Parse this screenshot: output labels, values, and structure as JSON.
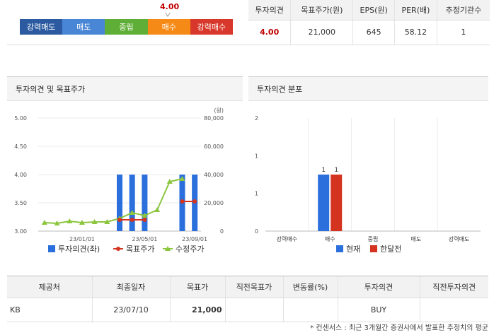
{
  "scale": {
    "current_value": "4.00",
    "labels": [
      "강력매도",
      "매도",
      "중립",
      "매수",
      "강력매수"
    ]
  },
  "summary": {
    "headers": [
      "투자의견",
      "목표주가(원)",
      "EPS(원)",
      "PER(배)",
      "추정기관수"
    ],
    "values": [
      "4.00",
      "21,000",
      "645",
      "58.12",
      "1"
    ]
  },
  "panel_left": {
    "title": "투자의견 및 목표주가"
  },
  "panel_right": {
    "title": "투자의견 분포"
  },
  "colors": {
    "opinion_bar": "#2a6fdb",
    "target_price": "#d4331f",
    "adjusted_price": "#8cc63f"
  },
  "chart_data": [
    {
      "type": "bar+line",
      "title": "투자의견 및 목표주가",
      "y_left_ticks": [
        "5.00",
        "4.50",
        "4.00",
        "3.50",
        "3.00"
      ],
      "y_left_range": [
        3,
        5
      ],
      "y_right_ticks": [
        "80,000",
        "60,000",
        "40,000",
        "20,000",
        "0"
      ],
      "y_right_range": [
        0,
        80000
      ],
      "y_right_unit": "(원)",
      "x_ticks": [
        "23/01/01",
        "23/05/01",
        "23/09/01"
      ],
      "x_tick_index": [
        3,
        8,
        12
      ],
      "opinion_bars": [
        {
          "index": 6,
          "value": 4.0
        },
        {
          "index": 7,
          "value": 4.0
        },
        {
          "index": 8,
          "value": 4.0
        },
        {
          "index": 11,
          "value": 4.0
        },
        {
          "index": 12,
          "value": 4.0
        }
      ],
      "target_price": [
        {
          "index": 6,
          "value": 8000
        },
        {
          "index": 7,
          "value": 8000
        },
        {
          "index": 8,
          "value": 8000
        },
        {
          "index": 11,
          "value": 21000
        },
        {
          "index": 12,
          "value": 21000
        }
      ],
      "adjusted_price": [
        6000,
        5500,
        7000,
        6000,
        6500,
        6500,
        9000,
        13000,
        11000,
        15000,
        35000,
        37000
      ],
      "legend": [
        "투자의견(좌)",
        "목표주가",
        "수정주가"
      ],
      "legend_position": "bottom"
    },
    {
      "type": "bar",
      "title": "투자의견 분포",
      "categories": [
        "강력매수",
        "매수",
        "중립",
        "매도",
        "강력매도"
      ],
      "series": [
        {
          "name": "현재",
          "values": [
            0,
            1,
            0,
            0,
            0
          ]
        },
        {
          "name": "한달전",
          "values": [
            0,
            1,
            0,
            0,
            0
          ]
        }
      ],
      "y_ticks": [
        "2",
        "1",
        "1",
        "0"
      ],
      "ylim": [
        0,
        2
      ],
      "legend": [
        "현재",
        "한달전"
      ],
      "legend_position": "bottom"
    }
  ],
  "detail": {
    "headers": [
      "제공처",
      "최종일자",
      "목표가",
      "직전목표가",
      "변동률(%)",
      "투자의견",
      "직전투자의견"
    ],
    "rows": [
      [
        "KB",
        "23/07/10",
        "21,000",
        "",
        "",
        "BUY",
        ""
      ]
    ]
  },
  "footnote": "* 컨센서스 : 최근 3개월간 증권사에서 발표한 추정치의 평균"
}
